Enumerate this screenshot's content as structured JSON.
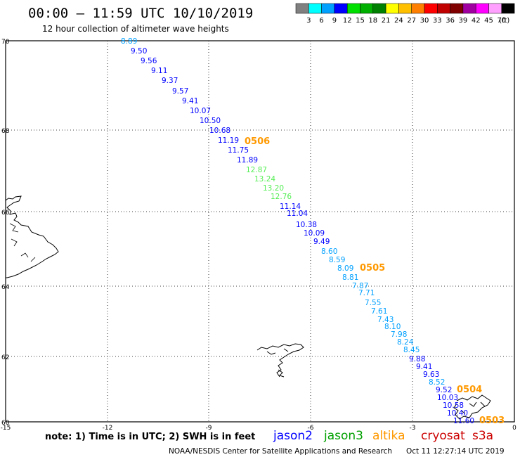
{
  "header": {
    "title": "00:00 – 11:59 UTC 10/10/2019",
    "subtitle": "12 hour collection of altimeter wave heights"
  },
  "colorbar": {
    "colors": [
      "#808080",
      "#00ffff",
      "#00a0ff",
      "#0000ff",
      "#00e000",
      "#00b000",
      "#008000",
      "#ffff00",
      "#ffc000",
      "#ff8000",
      "#ff0000",
      "#c00000",
      "#800000",
      "#a000a0",
      "#ff00ff",
      "#ffa0ff",
      "#000000"
    ],
    "labels": [
      "3",
      "6",
      "9",
      "12",
      "15",
      "18",
      "21",
      "24",
      "27",
      "30",
      "33",
      "36",
      "39",
      "42",
      "45",
      "70"
    ],
    "unit": "(ft)"
  },
  "axes": {
    "lat_ticks": [
      "70",
      "68",
      "66",
      "64",
      "62",
      "60"
    ],
    "lon_ticks": [
      "-15",
      "-12",
      "-9",
      "-6",
      "-3",
      "0"
    ]
  },
  "track": [
    {
      "label": "8.89",
      "color": "#00a0ff"
    },
    {
      "label": "9.50",
      "color": "#0000ff"
    },
    {
      "label": "9.56",
      "color": "#0000ff"
    },
    {
      "label": "9.11",
      "color": "#0000ff"
    },
    {
      "label": "9.37",
      "color": "#0000ff"
    },
    {
      "label": "9.57",
      "color": "#0000ff"
    },
    {
      "label": "9.41",
      "color": "#0000ff"
    },
    {
      "label": "10.07",
      "color": "#0000ff"
    },
    {
      "label": "10.50",
      "color": "#0000ff"
    },
    {
      "label": "10.68",
      "color": "#0000ff"
    },
    {
      "label": "11.19",
      "color": "#0000ff"
    },
    {
      "label": "11.75",
      "color": "#0000ff"
    },
    {
      "label": "11.89",
      "color": "#0000ff"
    },
    {
      "label": "12.87",
      "color": "#55ee55"
    },
    {
      "label": "13.24",
      "color": "#55ee55"
    },
    {
      "label": "13.20",
      "color": "#55ee55"
    },
    {
      "label": "12.76",
      "color": "#55ee55"
    },
    {
      "label": "11.14",
      "color": "#0000ff"
    },
    {
      "label": "11.04",
      "color": "#0000ff"
    },
    {
      "label": "10.38",
      "color": "#0000ff"
    },
    {
      "label": "10.09",
      "color": "#0000ff"
    },
    {
      "label": "9.49",
      "color": "#0000ff"
    },
    {
      "label": "8.60",
      "color": "#00a0ff"
    },
    {
      "label": "8.59",
      "color": "#00a0ff"
    },
    {
      "label": "8.09",
      "color": "#00a0ff"
    },
    {
      "label": "8.81",
      "color": "#00a0ff"
    },
    {
      "label": "7.87",
      "color": "#00a0ff"
    },
    {
      "label": "7.71",
      "color": "#00a0ff"
    },
    {
      "label": "7.55",
      "color": "#00a0ff"
    },
    {
      "label": "7.61",
      "color": "#00a0ff"
    },
    {
      "label": "7.43",
      "color": "#00a0ff"
    },
    {
      "label": "8.10",
      "color": "#00a0ff"
    },
    {
      "label": "7.98",
      "color": "#00a0ff"
    },
    {
      "label": "8.24",
      "color": "#00a0ff"
    },
    {
      "label": "8.45",
      "color": "#00a0ff"
    },
    {
      "label": "9.88",
      "color": "#0000ff"
    },
    {
      "label": "9.41",
      "color": "#0000ff"
    },
    {
      "label": "9.63",
      "color": "#0000ff"
    },
    {
      "label": "8.52",
      "color": "#00a0ff"
    },
    {
      "label": "9.52",
      "color": "#0000ff"
    },
    {
      "label": "10.03",
      "color": "#0000ff"
    },
    {
      "label": "10.58",
      "color": "#0000ff"
    },
    {
      "label": "10.40",
      "color": "#0000ff"
    },
    {
      "label": "11.60",
      "color": "#0000ff"
    }
  ],
  "time_labels": [
    {
      "label": "0506",
      "color": "#ff9900"
    },
    {
      "label": "0505",
      "color": "#ff9900"
    },
    {
      "label": "0504",
      "color": "#ff9900"
    },
    {
      "label": "0503",
      "color": "#ff9900"
    }
  ],
  "footer": {
    "note": "note: 1) Time is in UTC; 2) SWH is in feet",
    "satellites": [
      {
        "name": "jason2",
        "color": "#0000ff"
      },
      {
        "name": "jason3",
        "color": "#00a000"
      },
      {
        "name": "altika",
        "color": "#ff9900"
      },
      {
        "name": "cryosat",
        "color": "#cc0000"
      },
      {
        "name": "s3a",
        "color": "#cc0000"
      }
    ],
    "credit": "NOAA/NESDIS Center for Satellite Applications and Research",
    "timestamp": "Oct 11 12:27:14 UTC 2019"
  }
}
